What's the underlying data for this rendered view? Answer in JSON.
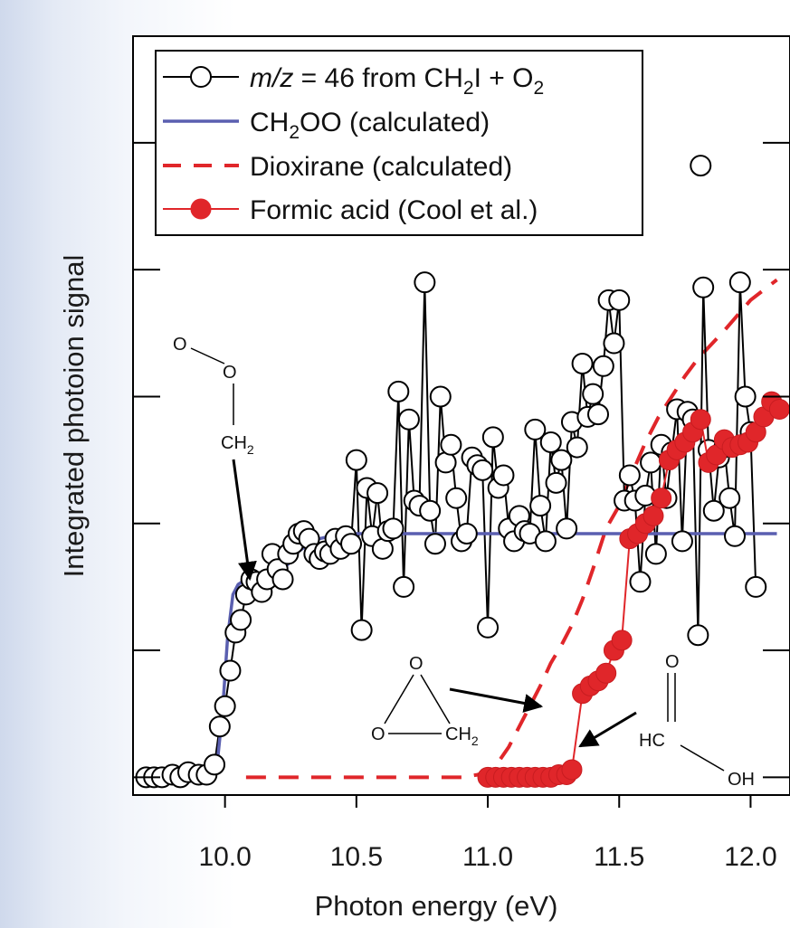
{
  "chart_data": {
    "type": "line",
    "xlabel": "Photon energy (eV)",
    "ylabel": "Integrated photoion signal",
    "xlim": [
      9.65,
      12.15
    ],
    "ylim": [
      -0.07,
      2.92
    ],
    "xticks": [
      10.0,
      10.5,
      11.0,
      11.5,
      12.0
    ],
    "xtick_labels": [
      "10.0",
      "10.5",
      "11.0",
      "11.5",
      "12.0"
    ],
    "yticks": [
      0,
      0.5,
      1.0,
      1.5,
      2.0,
      2.5
    ],
    "ytick_labels_shown": false,
    "grid": false,
    "legend_position": "top-left",
    "legend": [
      {
        "key": "mz46",
        "segments": [
          {
            "text": "m/z",
            "style": "italic"
          },
          {
            "text": " = 46 from CH"
          },
          {
            "text": "2",
            "style": "sub"
          },
          {
            "text": "I + O"
          },
          {
            "text": "2",
            "style": "sub"
          }
        ]
      },
      {
        "key": "ch2oo",
        "segments": [
          {
            "text": "CH"
          },
          {
            "text": "2",
            "style": "sub"
          },
          {
            "text": "OO (calculated)"
          }
        ]
      },
      {
        "key": "dioxirane",
        "segments": [
          {
            "text": "Dioxirane (calculated)"
          }
        ]
      },
      {
        "key": "formic",
        "segments": [
          {
            "text": "Formic acid (Cool et al.)"
          }
        ]
      }
    ],
    "series": [
      {
        "name": "m/z = 46 from CH2I + O2",
        "key": "mz46",
        "style": "open-circle-line",
        "color": "#000000",
        "x": [
          9.7,
          9.73,
          9.76,
          9.8,
          9.83,
          9.86,
          9.9,
          9.93,
          9.96,
          9.98,
          10.0,
          10.02,
          10.04,
          10.06,
          10.08,
          10.1,
          10.12,
          10.14,
          10.16,
          10.18,
          10.2,
          10.22,
          10.24,
          10.26,
          10.28,
          10.3,
          10.32,
          10.34,
          10.36,
          10.38,
          10.4,
          10.42,
          10.44,
          10.46,
          10.48,
          10.5,
          10.52,
          10.54,
          10.56,
          10.58,
          10.6,
          10.62,
          10.64,
          10.66,
          10.68,
          10.7,
          10.72,
          10.74,
          10.76,
          10.78,
          10.8,
          10.82,
          10.84,
          10.86,
          10.88,
          10.9,
          10.92,
          10.94,
          10.96,
          10.98,
          11.0,
          11.02,
          11.04,
          11.06,
          11.08,
          11.1,
          11.12,
          11.14,
          11.16,
          11.18,
          11.2,
          11.22,
          11.24,
          11.26,
          11.28,
          11.3,
          11.32,
          11.34,
          11.36,
          11.38,
          11.4,
          11.42,
          11.44,
          11.46,
          11.48,
          11.5,
          11.52,
          11.54,
          11.56,
          11.58,
          11.6,
          11.62,
          11.64,
          11.66,
          11.68,
          11.7,
          11.72,
          11.74,
          11.76,
          11.78,
          11.8,
          11.82,
          11.84,
          11.86,
          11.88,
          11.9,
          11.92,
          11.94,
          11.96,
          11.98,
          12.0,
          12.02
        ],
        "y": [
          0.0,
          0.0,
          0.0,
          0.01,
          0.0,
          0.02,
          0.01,
          0.01,
          0.05,
          0.2,
          0.28,
          0.42,
          0.57,
          0.62,
          0.72,
          0.78,
          0.77,
          0.73,
          0.78,
          0.88,
          0.82,
          0.78,
          0.88,
          0.92,
          0.96,
          0.97,
          0.94,
          0.88,
          0.86,
          0.89,
          0.88,
          0.94,
          0.9,
          0.95,
          0.92,
          1.25,
          0.58,
          1.14,
          0.95,
          1.12,
          0.9,
          0.97,
          0.98,
          1.52,
          0.75,
          1.41,
          1.09,
          1.07,
          1.95,
          1.05,
          0.92,
          1.5,
          1.24,
          1.31,
          1.1,
          0.93,
          0.96,
          1.26,
          1.23,
          1.21,
          0.59,
          1.34,
          1.14,
          1.19,
          0.98,
          0.93,
          1.03,
          0.97,
          0.96,
          1.37,
          1.07,
          0.93,
          1.32,
          1.16,
          1.25,
          0.98,
          1.4,
          1.3,
          1.63,
          1.42,
          1.51,
          1.43,
          1.62,
          1.88,
          1.71,
          1.88,
          1.09,
          1.19,
          1.09,
          0.77,
          1.11,
          1.24,
          0.88,
          1.31,
          1.1,
          1.28,
          1.45,
          0.93,
          1.44,
          1.41,
          0.56,
          1.93,
          1.29,
          1.05,
          1.26,
          1.3,
          1.1,
          0.95,
          1.95,
          1.5,
          1.36,
          0.75
        ],
        "marker_only_points": [
          {
            "x": 11.81,
            "y": 2.41
          }
        ]
      },
      {
        "name": "CH2OO (calculated)",
        "key": "ch2oo",
        "style": "line",
        "color": "#5a5fb0",
        "x": [
          9.7,
          9.95,
          9.97,
          9.99,
          10.01,
          10.03,
          10.05,
          10.08,
          10.12,
          10.16,
          10.2,
          10.24,
          10.28,
          10.32,
          10.36,
          10.4,
          10.45,
          10.5,
          10.6,
          10.8,
          11.0,
          11.5,
          12.0,
          12.1
        ],
        "y": [
          0.0,
          0.0,
          0.05,
          0.25,
          0.55,
          0.72,
          0.76,
          0.78,
          0.78,
          0.79,
          0.8,
          0.84,
          0.89,
          0.92,
          0.94,
          0.95,
          0.955,
          0.96,
          0.96,
          0.96,
          0.96,
          0.96,
          0.96,
          0.96
        ]
      },
      {
        "name": "Dioxirane (calculated)",
        "key": "dioxirane",
        "style": "dashed-line",
        "color": "#e0262a",
        "x": [
          10.08,
          10.4,
          10.7,
          10.9,
          10.96,
          11.0,
          11.04,
          11.08,
          11.12,
          11.16,
          11.2,
          11.24,
          11.28,
          11.32,
          11.36,
          11.4,
          11.45,
          11.5,
          11.55,
          11.6,
          11.65,
          11.7,
          11.75,
          11.8,
          11.9,
          12.0,
          12.1
        ],
        "y": [
          0.0,
          0.0,
          0.0,
          0.0,
          0.01,
          0.02,
          0.06,
          0.12,
          0.2,
          0.28,
          0.36,
          0.45,
          0.52,
          0.6,
          0.7,
          0.82,
          0.98,
          1.07,
          1.2,
          1.32,
          1.42,
          1.5,
          1.58,
          1.65,
          1.76,
          1.88,
          1.96
        ]
      },
      {
        "name": "Formic acid (Cool et al.)",
        "key": "formic",
        "style": "filled-circle-line",
        "color": "#e0262a",
        "x": [
          11.0,
          11.03,
          11.06,
          11.09,
          11.12,
          11.15,
          11.18,
          11.21,
          11.24,
          11.27,
          11.3,
          11.32,
          11.36,
          11.39,
          11.42,
          11.45,
          11.48,
          11.51,
          11.54,
          11.57,
          11.6,
          11.63,
          11.66,
          11.69,
          11.72,
          11.75,
          11.78,
          11.81,
          11.84,
          11.87,
          11.9,
          11.93,
          11.96,
          11.99,
          12.02,
          12.05,
          12.08,
          12.11
        ],
        "y": [
          0.0,
          0.0,
          0.0,
          0.0,
          0.0,
          0.0,
          0.0,
          0.0,
          0.0,
          0.01,
          0.01,
          0.03,
          0.33,
          0.36,
          0.38,
          0.41,
          0.5,
          0.54,
          0.94,
          0.96,
          1.0,
          1.03,
          1.1,
          1.25,
          1.29,
          1.32,
          1.36,
          1.41,
          1.24,
          1.27,
          1.33,
          1.3,
          1.31,
          1.32,
          1.36,
          1.42,
          1.48,
          1.45
        ]
      }
    ],
    "annotations": [
      {
        "key": "ch2oo-structure",
        "labels": {
          "o_top": "O",
          "o_mid": "O",
          "ch2_main": "CH",
          "ch2_sub": "2"
        }
      },
      {
        "key": "dioxirane-structure",
        "labels": {
          "o_top": "O",
          "o_left": "O",
          "ch2_main": "CH",
          "ch2_sub": "2"
        }
      },
      {
        "key": "formic-structure",
        "labels": {
          "o_top": "O",
          "hc": "HC",
          "oh": "OH"
        }
      }
    ]
  }
}
